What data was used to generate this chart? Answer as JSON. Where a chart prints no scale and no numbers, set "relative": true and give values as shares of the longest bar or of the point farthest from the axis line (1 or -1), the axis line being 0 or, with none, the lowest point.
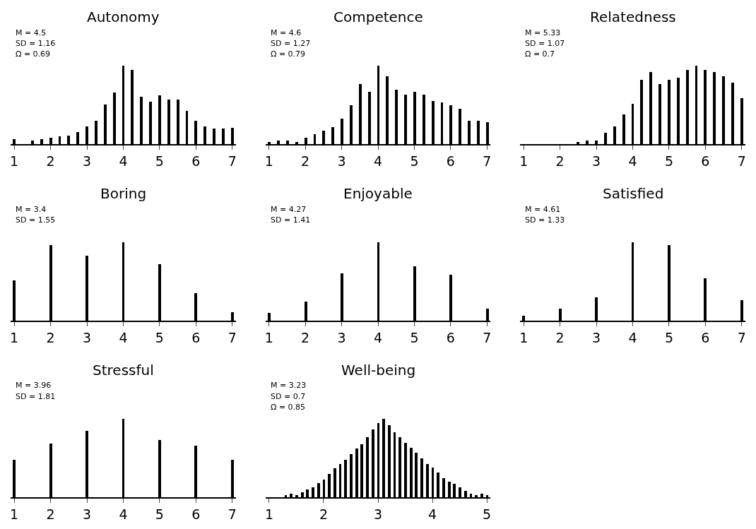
{
  "chart_data": [
    {
      "type": "bar",
      "title": "Autonomy",
      "relative": true,
      "tick_labels": "x",
      "annotations": [
        "M = 4.5",
        "SD = 1.16",
        "Ω = 0.69"
      ],
      "xlim": [
        0.9,
        7.1
      ],
      "xticks": [
        1,
        2,
        3,
        4,
        5,
        6,
        7
      ],
      "color": "#000000",
      "x": [
        1,
        1.5,
        1.75,
        2,
        2.25,
        2.5,
        2.75,
        3,
        3.25,
        3.5,
        3.75,
        4,
        4.25,
        4.5,
        4.75,
        5,
        5.25,
        5.5,
        5.75,
        6,
        6.25,
        6.5,
        6.75,
        7
      ],
      "values": [
        0.07,
        0.05,
        0.07,
        0.08,
        0.1,
        0.11,
        0.16,
        0.23,
        0.3,
        0.51,
        0.66,
        1,
        0.95,
        0.61,
        0.54,
        0.62,
        0.57,
        0.57,
        0.43,
        0.3,
        0.23,
        0.2,
        0.2,
        0.21
      ]
    },
    {
      "type": "bar",
      "title": "Competence",
      "relative": true,
      "tick_labels": "x",
      "annotations": [
        "M = 4.6",
        "SD = 1.27",
        "Ω = 0.79"
      ],
      "xlim": [
        0.9,
        7.1
      ],
      "xticks": [
        1,
        2,
        3,
        4,
        5,
        6,
        7
      ],
      "color": "#000000",
      "x": [
        1,
        1.25,
        1.5,
        1.75,
        2,
        2.25,
        2.5,
        2.75,
        3,
        3.25,
        3.5,
        3.75,
        4,
        4.25,
        4.5,
        4.75,
        5,
        5.25,
        5.5,
        5.75,
        6,
        6.25,
        6.5,
        6.75,
        7
      ],
      "values": [
        0.03,
        0.05,
        0.05,
        0.03,
        0.08,
        0.13,
        0.17,
        0.22,
        0.33,
        0.5,
        0.77,
        0.67,
        1,
        0.87,
        0.7,
        0.63,
        0.67,
        0.63,
        0.55,
        0.53,
        0.5,
        0.45,
        0.3,
        0.3,
        0.28
      ]
    },
    {
      "type": "bar",
      "title": "Relatedness",
      "relative": true,
      "tick_labels": "x",
      "annotations": [
        "M = 5.33",
        "SD = 1.07",
        "Ω = 0.7"
      ],
      "xlim": [
        0.9,
        7.1
      ],
      "xticks": [
        1,
        2,
        3,
        4,
        5,
        6,
        7
      ],
      "color": "#000000",
      "x": [
        2.5,
        2.75,
        3,
        3.25,
        3.5,
        3.75,
        4,
        4.25,
        4.5,
        4.75,
        5,
        5.25,
        5.5,
        5.75,
        6,
        6.25,
        6.5,
        6.75,
        7
      ],
      "values": [
        0.03,
        0.05,
        0.05,
        0.15,
        0.23,
        0.38,
        0.52,
        0.82,
        0.92,
        0.77,
        0.82,
        0.85,
        0.95,
        1,
        0.95,
        0.92,
        0.87,
        0.79,
        0.59
      ]
    },
    {
      "type": "bar",
      "title": "Boring",
      "relative": true,
      "tick_labels": "x",
      "annotations": [
        "M = 3.4",
        "SD = 1.55"
      ],
      "xlim": [
        0.9,
        7.1
      ],
      "xticks": [
        1,
        2,
        3,
        4,
        5,
        6,
        7
      ],
      "color": "#000000",
      "x": [
        1,
        2,
        3,
        4,
        5,
        6,
        7
      ],
      "values": [
        0.52,
        0.97,
        0.83,
        1,
        0.72,
        0.35,
        0.11
      ]
    },
    {
      "type": "bar",
      "title": "Enjoyable",
      "relative": true,
      "tick_labels": "x",
      "annotations": [
        "M = 4.27",
        "SD = 1.41"
      ],
      "xlim": [
        0.9,
        7.1
      ],
      "xticks": [
        1,
        2,
        3,
        4,
        5,
        6,
        7
      ],
      "color": "#000000",
      "x": [
        1,
        2,
        3,
        4,
        5,
        6,
        7
      ],
      "values": [
        0.1,
        0.25,
        0.61,
        1,
        0.7,
        0.59,
        0.16
      ]
    },
    {
      "type": "bar",
      "title": "Satisfied",
      "relative": true,
      "tick_labels": "x",
      "annotations": [
        "M = 4.61",
        "SD = 1.33"
      ],
      "xlim": [
        0.9,
        7.1
      ],
      "xticks": [
        1,
        2,
        3,
        4,
        5,
        6,
        7
      ],
      "color": "#000000",
      "x": [
        1,
        2,
        3,
        4,
        5,
        6,
        7
      ],
      "values": [
        0.07,
        0.16,
        0.3,
        1,
        0.97,
        0.54,
        0.26
      ]
    },
    {
      "type": "bar",
      "title": "Stressful",
      "relative": true,
      "tick_labels": "x",
      "annotations": [
        "M = 3.96",
        "SD = 1.81"
      ],
      "xlim": [
        0.9,
        7.1
      ],
      "xticks": [
        1,
        2,
        3,
        4,
        5,
        6,
        7
      ],
      "color": "#000000",
      "x": [
        1,
        2,
        3,
        4,
        5,
        6,
        7
      ],
      "values": [
        0.48,
        0.69,
        0.85,
        1,
        0.73,
        0.66,
        0.48
      ]
    },
    {
      "type": "bar",
      "title": "Well-being",
      "relative": true,
      "tick_labels": "x",
      "annotations": [
        "M = 3.23",
        "SD = 0.7",
        "Ω = 0.85"
      ],
      "xlim": [
        0.93,
        5.07
      ],
      "xticks": [
        1,
        2,
        3,
        4,
        5
      ],
      "color": "#000000",
      "x": [
        1.3,
        1.4,
        1.5,
        1.6,
        1.7,
        1.8,
        1.9,
        2.0,
        2.1,
        2.2,
        2.3,
        2.4,
        2.5,
        2.6,
        2.7,
        2.8,
        2.9,
        3.0,
        3.1,
        3.2,
        3.3,
        3.4,
        3.5,
        3.6,
        3.7,
        3.8,
        3.9,
        4.0,
        4.1,
        4.2,
        4.3,
        4.4,
        4.5,
        4.6,
        4.7,
        4.8,
        4.9,
        5.0
      ],
      "values": [
        0.03,
        0.05,
        0.03,
        0.07,
        0.1,
        0.13,
        0.18,
        0.23,
        0.3,
        0.37,
        0.43,
        0.48,
        0.55,
        0.62,
        0.68,
        0.77,
        0.87,
        0.95,
        1,
        0.92,
        0.83,
        0.77,
        0.7,
        0.63,
        0.57,
        0.5,
        0.43,
        0.38,
        0.32,
        0.25,
        0.2,
        0.17,
        0.13,
        0.08,
        0.05,
        0.03,
        0.05,
        0.03
      ]
    }
  ]
}
